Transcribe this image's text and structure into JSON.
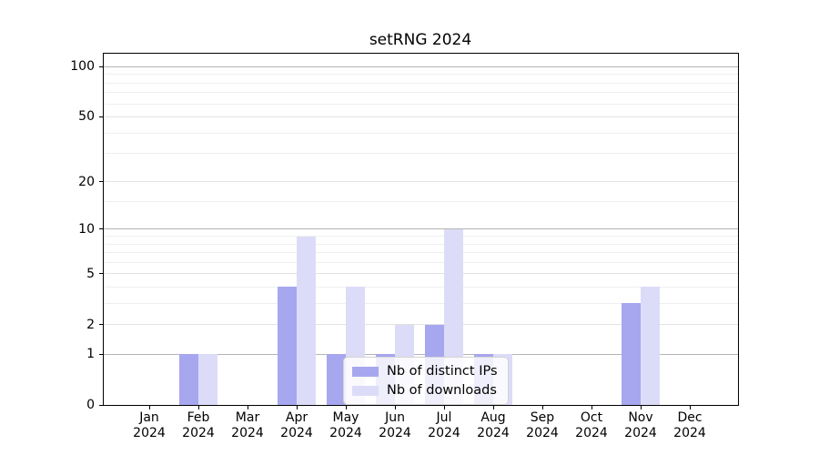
{
  "title": "setRNG 2024",
  "chart_data": {
    "type": "bar",
    "title": "setRNG 2024",
    "categories": [
      "Jan 2024",
      "Feb 2024",
      "Mar 2024",
      "Apr 2024",
      "May 2024",
      "Jun 2024",
      "Jul 2024",
      "Aug 2024",
      "Sep 2024",
      "Oct 2024",
      "Nov 2024",
      "Dec 2024"
    ],
    "series": [
      {
        "name": "Nb of distinct IPs",
        "color": "#a7a7ef",
        "values": [
          0,
          1,
          0,
          4,
          1,
          1,
          2,
          1,
          0,
          0,
          3,
          0
        ]
      },
      {
        "name": "Nb of downloads",
        "color": "#dcdcf8",
        "values": [
          0,
          1,
          0,
          9,
          4,
          2,
          10,
          1,
          0,
          0,
          4,
          0
        ]
      }
    ],
    "xlabel": "",
    "ylabel": "",
    "yscale": "log1p",
    "ylim": [
      0,
      130
    ],
    "yticks": [
      0,
      1,
      2,
      5,
      10,
      20,
      50,
      100
    ],
    "minor_gridlines": [
      3,
      4,
      6,
      7,
      8,
      9,
      15,
      30,
      40,
      60,
      70,
      80,
      90
    ],
    "grid": "on",
    "legend_position": "lower center",
    "colors": {
      "major_gridline_strong": "#b4b4b4",
      "major_gridline": "#e2e2e2",
      "minor_gridline": "#efefef",
      "axis": "#000000",
      "background": "#ffffff"
    }
  }
}
